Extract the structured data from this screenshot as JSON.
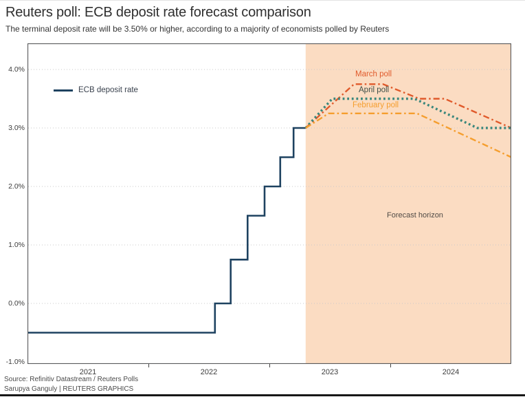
{
  "header": {
    "title": "Reuters poll: ECB deposit rate forecast comparison",
    "subtitle": "The terminal deposit rate will be 3.50% or higher, according to a majority of economists polled by Reuters"
  },
  "legend": {
    "label": "ECB deposit rate"
  },
  "colors": {
    "ecb_line": "#1e4260",
    "march_label": "#e05a2b",
    "april_label": "#3d4f48",
    "february_label": "#f59e2e",
    "horizon_label": "#4f4a45",
    "forecast_region": "#fbdcc2",
    "grid": "#c9c9c9",
    "plot_border": "#58595b"
  },
  "footer": {
    "source": "Source: Refinitiv Datastream / Reuters Polls",
    "credit": "Sarupya Ganguly | REUTERS GRAPHICS"
  },
  "chart_data": {
    "type": "line",
    "title": "Reuters poll: ECB deposit rate forecast comparison",
    "subtitle": "The terminal deposit rate will be 3.50% or higher, according to a majority of economists polled by Reuters",
    "x_axis": {
      "range": [
        2021,
        2025
      ],
      "tick_years": [
        2022,
        2023,
        2024
      ],
      "year_labels": [
        "2021",
        "2022",
        "2023",
        "2024"
      ],
      "grid": false
    },
    "y_axis": {
      "range": [
        -1.05,
        4.45
      ],
      "ticks": [
        {
          "value": 4,
          "label": "4.0%"
        },
        {
          "value": 3,
          "label": "3.0%"
        },
        {
          "value": 2,
          "label": "2.0%"
        },
        {
          "value": 1,
          "label": "1.0%"
        },
        {
          "value": 0,
          "label": "0.0%"
        },
        {
          "value": -1,
          "label": "-1.0%"
        }
      ],
      "grid_values": [
        4,
        3,
        2,
        1,
        0
      ]
    },
    "forecast_region": {
      "start_year": 2023.3,
      "end_year": 2025.0,
      "label": "Forecast horizon",
      "fill": "#fbdcc2"
    },
    "legend_position": "top-left-inside",
    "series": [
      {
        "name": "ECB deposit rate",
        "color": "#1e4260",
        "style": "solid",
        "step": true,
        "points": [
          [
            2021.0,
            -0.5
          ],
          [
            2022.55,
            -0.5
          ],
          [
            2022.55,
            0.0
          ],
          [
            2022.68,
            0.0
          ],
          [
            2022.68,
            0.75
          ],
          [
            2022.82,
            0.75
          ],
          [
            2022.82,
            1.5
          ],
          [
            2022.96,
            1.5
          ],
          [
            2022.96,
            2.0
          ],
          [
            2023.09,
            2.0
          ],
          [
            2023.09,
            2.5
          ],
          [
            2023.2,
            2.5
          ],
          [
            2023.2,
            3.0
          ],
          [
            2023.3,
            3.0
          ]
        ]
      },
      {
        "name": "March poll",
        "color": "#e05a2b",
        "style": "dashdot",
        "points": [
          [
            2023.3,
            3.0
          ],
          [
            2023.7,
            3.75
          ],
          [
            2023.94,
            3.75
          ],
          [
            2024.24,
            3.5
          ],
          [
            2024.45,
            3.5
          ],
          [
            2025.0,
            3.0
          ]
        ]
      },
      {
        "name": "April poll",
        "color": "#3a877c",
        "style": "dotted",
        "points": [
          [
            2023.3,
            3.0
          ],
          [
            2023.52,
            3.5
          ],
          [
            2024.2,
            3.5
          ],
          [
            2024.72,
            3.0
          ],
          [
            2025.0,
            3.0
          ]
        ]
      },
      {
        "name": "February poll",
        "color": "#f59e2e",
        "style": "dashdot",
        "points": [
          [
            2023.3,
            3.0
          ],
          [
            2023.49,
            3.25
          ],
          [
            2024.22,
            3.25
          ],
          [
            2025.0,
            2.5
          ]
        ]
      }
    ]
  }
}
